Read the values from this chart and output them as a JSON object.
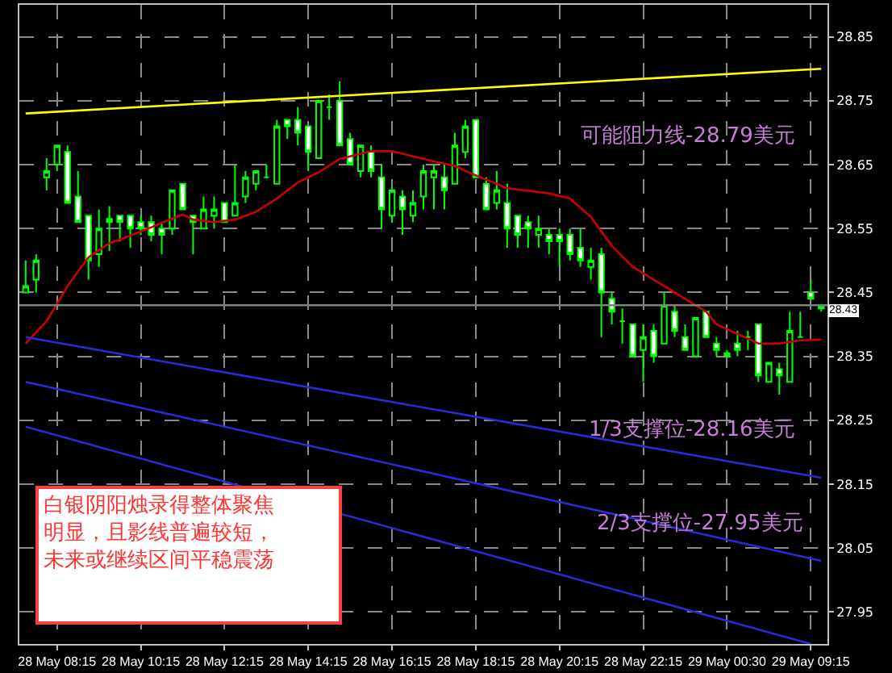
{
  "chart_data": {
    "type": "candlestick",
    "categories": [
      null,
      null,
      null,
      "28 May 08:15",
      null,
      null,
      null,
      null,
      null,
      null,
      null,
      "28 May 10:15",
      null,
      null,
      null,
      null,
      null,
      null,
      null,
      "28 May 12:15",
      null,
      null,
      null,
      null,
      null,
      null,
      null,
      "28 May 14:15",
      null,
      null,
      null,
      null,
      null,
      null,
      null,
      "28 May 16:15",
      null,
      null,
      null,
      null,
      null,
      null,
      null,
      "28 May 18:15",
      null,
      null,
      null,
      null,
      null,
      null,
      null,
      "28 May 20:15",
      null,
      null,
      null,
      null,
      null,
      null,
      null,
      "28 May 22:15",
      null,
      null,
      null,
      null,
      null,
      null,
      null,
      "29 May 00:30",
      null,
      null,
      null,
      null,
      null,
      null,
      null,
      "29 May 09:15",
      null
    ],
    "color": "#00ff00",
    "ohlc": [
      [
        28.45,
        28.5,
        28.45,
        28.46
      ],
      [
        28.47,
        28.51,
        28.45,
        28.5
      ],
      [
        28.63,
        28.66,
        28.61,
        28.64
      ],
      [
        28.65,
        28.68,
        28.64,
        28.68
      ],
      [
        28.67,
        28.68,
        28.59,
        28.59
      ],
      [
        28.6,
        28.64,
        28.56,
        28.56
      ],
      [
        28.57,
        28.57,
        28.47,
        28.5
      ],
      [
        28.51,
        28.58,
        28.49,
        28.55
      ],
      [
        28.565,
        28.585,
        28.515,
        28.56
      ],
      [
        28.57,
        28.57,
        28.53,
        28.56
      ],
      [
        28.57,
        28.57,
        28.52,
        28.55
      ],
      [
        28.56,
        28.57,
        28.54,
        28.55
      ],
      [
        28.56,
        28.57,
        28.53,
        28.54
      ],
      [
        28.55,
        28.56,
        28.51,
        28.54
      ],
      [
        28.55,
        28.61,
        28.54,
        28.61
      ],
      [
        28.62,
        28.62,
        28.58,
        28.58
      ],
      [
        28.57,
        28.57,
        28.51,
        28.56
      ],
      [
        28.55,
        28.6,
        28.55,
        28.58
      ],
      [
        28.57,
        28.6,
        28.55,
        28.58
      ],
      [
        28.59,
        28.59,
        28.56,
        28.56
      ],
      [
        28.57,
        28.65,
        28.57,
        28.59
      ],
      [
        28.6,
        28.64,
        28.59,
        28.63
      ],
      [
        28.62,
        28.64,
        28.61,
        28.64
      ],
      [
        28.63,
        28.65,
        28.63,
        28.63
      ],
      [
        28.62,
        28.72,
        28.62,
        28.71
      ],
      [
        28.72,
        28.72,
        28.69,
        28.71
      ],
      [
        28.72,
        28.74,
        28.68,
        28.7
      ],
      [
        28.71,
        28.71,
        28.64,
        28.67
      ],
      [
        28.66,
        28.75,
        28.66,
        28.75
      ],
      [
        28.74,
        28.76,
        28.72,
        28.74
      ],
      [
        28.75,
        28.78,
        28.68,
        28.68
      ],
      [
        28.69,
        28.7,
        28.65,
        28.65
      ],
      [
        28.64,
        28.68,
        28.63,
        28.68
      ],
      [
        28.67,
        28.68,
        28.63,
        28.64
      ],
      [
        28.63,
        28.65,
        28.55,
        28.58
      ],
      [
        28.57,
        28.61,
        28.56,
        28.61
      ],
      [
        28.6,
        28.61,
        28.54,
        28.58
      ],
      [
        28.57,
        28.61,
        28.56,
        28.59
      ],
      [
        28.6,
        28.65,
        28.58,
        28.64
      ],
      [
        28.63,
        28.65,
        28.58,
        28.64
      ],
      [
        28.63,
        28.65,
        28.58,
        28.61
      ],
      [
        28.62,
        28.7,
        28.62,
        28.68
      ],
      [
        28.67,
        28.72,
        28.66,
        28.71
      ],
      [
        28.72,
        28.72,
        28.63,
        28.63
      ],
      [
        28.62,
        28.63,
        28.58,
        28.58
      ],
      [
        28.59,
        28.64,
        28.58,
        28.61
      ],
      [
        28.59,
        28.62,
        28.52,
        28.55
      ],
      [
        28.57,
        28.57,
        28.52,
        28.54
      ],
      [
        28.56,
        28.57,
        28.52,
        28.55
      ],
      [
        28.54,
        28.57,
        28.52,
        28.55
      ],
      [
        28.54,
        28.55,
        28.51,
        28.53
      ],
      [
        28.54,
        28.55,
        28.49,
        28.53
      ],
      [
        28.54,
        28.55,
        28.5,
        28.51
      ],
      [
        28.52,
        28.55,
        28.49,
        28.5
      ],
      [
        28.49,
        28.52,
        28.47,
        28.5
      ],
      [
        28.51,
        28.52,
        28.38,
        28.45
      ],
      [
        28.44,
        28.45,
        28.4,
        28.42
      ],
      [
        28.405,
        28.425,
        28.37,
        28.405
      ],
      [
        28.4,
        28.4,
        28.35,
        28.35
      ],
      [
        28.36,
        28.4,
        28.31,
        28.38
      ],
      [
        28.39,
        28.4,
        28.34,
        28.35
      ],
      [
        28.37,
        28.45,
        28.37,
        28.43
      ],
      [
        28.42,
        28.43,
        28.38,
        28.39
      ],
      [
        28.38,
        28.4,
        28.36,
        28.36
      ],
      [
        28.35,
        28.41,
        28.35,
        28.41
      ],
      [
        28.42,
        28.42,
        28.38,
        28.38
      ],
      [
        28.37,
        28.38,
        28.35,
        28.36
      ],
      [
        28.355,
        28.36,
        28.35,
        28.35
      ],
      [
        28.37,
        28.39,
        28.35,
        28.36
      ],
      [
        28.38,
        28.39,
        28.36,
        28.38
      ],
      [
        28.4,
        28.4,
        28.31,
        28.32
      ],
      [
        28.31,
        28.34,
        28.31,
        28.34
      ],
      [
        28.33,
        28.34,
        28.29,
        28.32
      ],
      [
        28.31,
        28.42,
        28.31,
        28.39
      ],
      [
        28.38,
        28.42,
        28.38,
        28.38
      ],
      [
        28.45,
        28.47,
        28.44,
        28.44
      ],
      [
        28.43,
        28.43,
        28.42,
        28.425
      ]
    ],
    "series": [
      {
        "type": "line",
        "color": "#ffff00",
        "values": [
          28.73,
          null,
          null,
          null,
          null,
          null,
          null,
          null,
          null,
          null,
          null,
          null,
          null,
          null,
          null,
          null,
          null,
          null,
          null,
          null,
          null,
          null,
          null,
          null,
          null,
          null,
          null,
          null,
          null,
          null,
          null,
          null,
          null,
          null,
          null,
          null,
          null,
          null,
          null,
          null,
          null,
          null,
          null,
          null,
          null,
          null,
          null,
          null,
          null,
          null,
          null,
          null,
          null,
          null,
          null,
          null,
          null,
          null,
          null,
          null,
          null,
          null,
          null,
          null,
          null,
          null,
          null,
          null,
          null,
          null,
          null,
          null,
          null,
          null,
          null,
          null,
          28.8
        ]
      },
      {
        "type": "line",
        "color": "#cc0000",
        "values": [
          28.37,
          null,
          28.405,
          null,
          28.46,
          null,
          28.505,
          null,
          28.527,
          null,
          28.539,
          null,
          28.552,
          null,
          null,
          28.572,
          28.564,
          null,
          28.56,
          null,
          28.564,
          null,
          28.576,
          null,
          28.597,
          null,
          28.622,
          null,
          28.638,
          null,
          28.659,
          null,
          28.667,
          28.671,
          null,
          28.671,
          null,
          28.663,
          null,
          28.655,
          null,
          28.648,
          28.64,
          null,
          null,
          null,
          28.613,
          null,
          null,
          null,
          28.605,
          null,
          28.597,
          null,
          28.568,
          null,
          28.523,
          null,
          28.49,
          null,
          28.47,
          null,
          28.45,
          28.44,
          null,
          28.42,
          28.4,
          null,
          28.385,
          null,
          28.37,
          null,
          28.37,
          null,
          28.375,
          null,
          28.376
        ]
      },
      {
        "type": "line",
        "color": "#2a2ad8",
        "values": [
          28.38,
          null,
          null,
          null,
          null,
          null,
          null,
          null,
          null,
          null,
          null,
          null,
          null,
          null,
          null,
          null,
          null,
          null,
          null,
          null,
          null,
          null,
          null,
          null,
          null,
          null,
          null,
          null,
          null,
          null,
          null,
          null,
          null,
          null,
          null,
          null,
          null,
          null,
          null,
          null,
          null,
          null,
          null,
          null,
          null,
          null,
          null,
          null,
          null,
          null,
          null,
          null,
          null,
          null,
          null,
          null,
          null,
          null,
          null,
          null,
          null,
          null,
          null,
          null,
          null,
          null,
          null,
          null,
          null,
          null,
          null,
          null,
          null,
          null,
          null,
          null,
          28.16
        ]
      },
      {
        "type": "line",
        "color": "#2a2ad8",
        "values": [
          28.31,
          null,
          null,
          null,
          null,
          null,
          null,
          null,
          null,
          null,
          null,
          null,
          null,
          null,
          null,
          null,
          null,
          null,
          null,
          null,
          null,
          null,
          null,
          null,
          null,
          null,
          null,
          null,
          null,
          null,
          null,
          null,
          null,
          null,
          null,
          null,
          null,
          null,
          null,
          null,
          null,
          null,
          null,
          null,
          null,
          null,
          null,
          null,
          null,
          null,
          null,
          null,
          null,
          null,
          null,
          null,
          null,
          null,
          null,
          null,
          null,
          null,
          null,
          null,
          null,
          null,
          null,
          null,
          null,
          null,
          null,
          null,
          null,
          null,
          null,
          null,
          28.03
        ]
      },
      {
        "type": "line",
        "color": "#2a2ad8",
        "values": [
          28.24,
          null,
          null,
          null,
          null,
          null,
          null,
          null,
          null,
          null,
          null,
          null,
          null,
          null,
          null,
          null,
          null,
          null,
          null,
          null,
          null,
          null,
          null,
          null,
          null,
          null,
          null,
          null,
          null,
          null,
          null,
          null,
          null,
          null,
          null,
          null,
          null,
          null,
          null,
          null,
          null,
          null,
          null,
          null,
          null,
          null,
          null,
          null,
          null,
          null,
          null,
          null,
          null,
          null,
          null,
          null,
          null,
          null,
          null,
          null,
          null,
          null,
          null,
          null,
          null,
          null,
          null,
          null,
          null,
          null,
          null,
          null,
          null,
          null,
          null,
          27.9,
          null
        ]
      }
    ],
    "ylim": [
      27.9,
      28.9
    ],
    "yticks": [
      27.95,
      28.05,
      28.15,
      28.25,
      28.35,
      28.45,
      28.55,
      28.65,
      28.75,
      28.85
    ],
    "ref_lines": [
      {
        "axis": "y",
        "value": 28.43,
        "label": "28.43",
        "color": "#808080"
      }
    ],
    "annotations": [
      "可能阻力线-28.79美元",
      "1/3支撑位-28.16美元",
      "2/3支撑位-27.95美元",
      "白银阴阳烛录得整体聚焦明显，且影线普遍较短，未来或继续区间平稳震荡"
    ],
    "grid": true
  }
}
